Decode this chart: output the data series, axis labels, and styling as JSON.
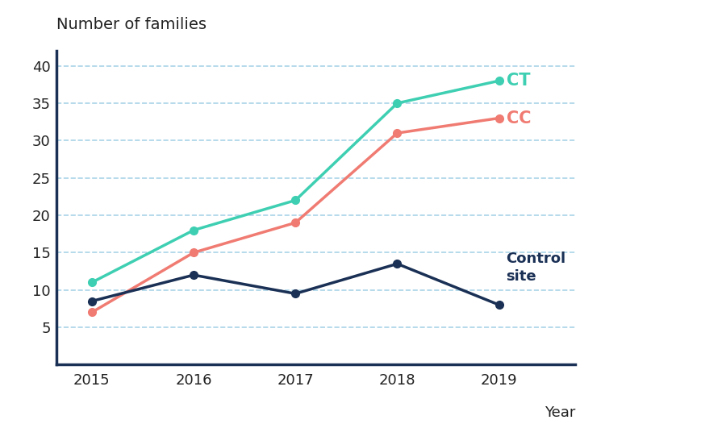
{
  "years": [
    2015,
    2016,
    2017,
    2018,
    2019
  ],
  "CT": [
    11,
    18,
    22,
    35,
    38
  ],
  "CC": [
    7,
    15,
    19,
    31,
    33
  ],
  "Control": [
    8.5,
    12,
    9.5,
    13.5,
    8
  ],
  "CT_color": "#3ecfb2",
  "CC_color": "#f07b72",
  "Control_color": "#1a3055",
  "title": "Number of families",
  "xlabel": "Year",
  "ylim": [
    0,
    42
  ],
  "yticks": [
    0,
    5,
    10,
    15,
    20,
    25,
    30,
    35,
    40
  ],
  "background_color": "#ffffff",
  "grid_color": "#aad4e8",
  "CT_label": "CT",
  "CC_label": "CC",
  "Control_label": "Control\nsite",
  "linewidth": 2.5,
  "markersize": 7
}
